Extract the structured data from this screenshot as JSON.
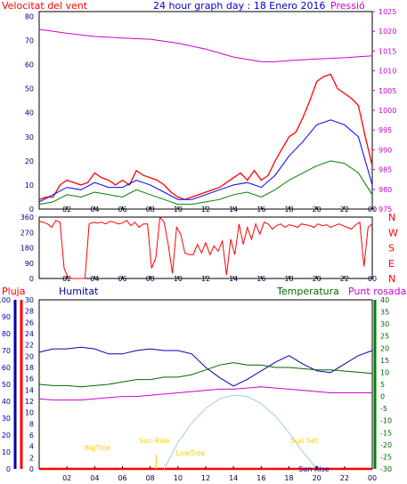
{
  "header": {
    "wind_label": "Velocitat del vent",
    "graph_title": "24 hour graph day : 18 Enero 2016",
    "pressure_label": "Pressió"
  },
  "middle": {
    "rain_label": "Pluja",
    "humidity_label": "Humitat",
    "temperature_label": "Temperatura",
    "dewpoint_label": "Punt rosada"
  },
  "colors": {
    "wind_gust": "#ff0000",
    "wind_avg": "#0000ff",
    "wind_low": "#008000",
    "pressure": "#cc00cc",
    "direction": "#ff0000",
    "humidity": "#0000aa",
    "temperature": "#006600",
    "dewpoint": "#cc00cc",
    "rain": "#ff0000",
    "sun_arc": "#99ccee",
    "sun_labels": "#ffcc00"
  },
  "chart_data": [
    {
      "type": "line",
      "title": "24 hour graph day : 18 Enero 2016",
      "x_tick_labels": [
        "02",
        "04",
        "06",
        "08",
        "10",
        "12",
        "14",
        "16",
        "18",
        "20",
        "22",
        "00"
      ],
      "x_range_hours": [
        0,
        24
      ],
      "left_axis": {
        "label": "Velocitat del vent",
        "ticks": [
          "0",
          "10",
          "20",
          "30",
          "40",
          "50",
          "60",
          "70",
          "80"
        ],
        "ylim": [
          0,
          82
        ]
      },
      "right_axis": {
        "label": "Pressió",
        "ticks": [
          "975",
          "980",
          "985",
          "990",
          "995",
          "1000",
          "1005",
          "1010",
          "1015",
          "1020",
          "1025"
        ],
        "ylim": [
          975,
          1025
        ]
      },
      "series": [
        {
          "name": "Velocitat del vent",
          "axis": "left",
          "color": "#ff0000",
          "x": [
            0,
            0.5,
            1,
            1.5,
            2,
            2.5,
            3,
            3.5,
            4,
            4.5,
            5,
            5.5,
            6,
            6.5,
            7,
            7.5,
            8,
            8.5,
            9,
            9.5,
            10,
            10.5,
            11,
            11.5,
            12,
            12.5,
            13,
            13.5,
            14,
            14.5,
            15,
            15.5,
            16,
            16.5,
            17,
            17.5,
            18,
            18.5,
            19,
            19.5,
            20,
            20.5,
            21,
            21.5,
            22,
            22.5,
            23,
            23.5,
            24
          ],
          "y": [
            4,
            5,
            5,
            10,
            12,
            11,
            10,
            11,
            15,
            13,
            12,
            10,
            12,
            10,
            16,
            14,
            13,
            12,
            10,
            7,
            5,
            4,
            5,
            6,
            7,
            8,
            9,
            11,
            13,
            15,
            12,
            16,
            12,
            14,
            20,
            25,
            30,
            32,
            38,
            45,
            53,
            55,
            56,
            50,
            48,
            46,
            43,
            30,
            18
          ]
        },
        {
          "name": "",
          "axis": "left",
          "color": "#0000ff",
          "x": [
            0,
            1,
            2,
            3,
            4,
            5,
            6,
            7,
            8,
            9,
            10,
            11,
            12,
            13,
            14,
            15,
            16,
            17,
            18,
            19,
            20,
            21,
            22,
            23,
            24
          ],
          "y": [
            3,
            6,
            9,
            8,
            11,
            9,
            9,
            12,
            10,
            7,
            4,
            4,
            6,
            8,
            10,
            11,
            9,
            14,
            22,
            28,
            35,
            37,
            35,
            30,
            10
          ]
        },
        {
          "name": "",
          "axis": "left",
          "color": "#008000",
          "x": [
            0,
            1,
            2,
            3,
            4,
            5,
            6,
            7,
            8,
            9,
            10,
            11,
            12,
            13,
            14,
            15,
            16,
            17,
            18,
            19,
            20,
            21,
            22,
            23,
            24
          ],
          "y": [
            2,
            3,
            6,
            5,
            7,
            6,
            5,
            8,
            6,
            4,
            2,
            2,
            3,
            4,
            6,
            7,
            5,
            8,
            12,
            15,
            18,
            20,
            19,
            15,
            6
          ]
        },
        {
          "name": "Pressió",
          "axis": "right",
          "color": "#cc00cc",
          "x": [
            0,
            2,
            4,
            6,
            8,
            10,
            12,
            14,
            16,
            17,
            18,
            20,
            22,
            24
          ],
          "y": [
            1020.5,
            1019.5,
            1018.7,
            1018.3,
            1018.0,
            1017.0,
            1015.5,
            1013.5,
            1012.3,
            1012.3,
            1012.6,
            1013.0,
            1013.3,
            1013.8
          ]
        }
      ]
    },
    {
      "type": "line",
      "title": "",
      "x_tick_labels": [
        "02",
        "04",
        "06",
        "08",
        "10",
        "12",
        "14",
        "16",
        "18",
        "20",
        "22",
        "00"
      ],
      "x_range_hours": [
        0,
        24
      ],
      "y_ticks": [
        "0",
        "90",
        "180",
        "270",
        "360"
      ],
      "compass_labels": [
        "N",
        "W",
        "S",
        "E",
        "N"
      ],
      "ylim": [
        0,
        360
      ],
      "series": [
        {
          "name": "",
          "color": "#ff0000",
          "x": [
            0,
            0.3,
            0.6,
            0.9,
            1.2,
            1.5,
            1.8,
            2.1,
            2.4,
            2.7,
            3.0,
            3.3,
            3.6,
            3.9,
            4.2,
            4.5,
            4.8,
            5.1,
            5.4,
            5.7,
            6.0,
            6.3,
            6.6,
            6.9,
            7.2,
            7.5,
            7.8,
            8.1,
            8.4,
            8.7,
            9.0,
            9.3,
            9.6,
            9.9,
            10.2,
            10.5,
            10.8,
            11.1,
            11.4,
            11.7,
            12.0,
            12.3,
            12.6,
            12.9,
            13.2,
            13.5,
            13.8,
            14.1,
            14.4,
            14.7,
            15.0,
            15.3,
            15.6,
            15.9,
            16.2,
            16.5,
            16.8,
            17.1,
            17.4,
            17.7,
            18.0,
            18.3,
            18.6,
            18.9,
            19.2,
            19.5,
            19.8,
            20.1,
            20.4,
            20.7,
            21.0,
            21.3,
            21.6,
            21.9,
            22.2,
            22.5,
            22.8,
            23.1,
            23.4,
            23.7,
            24.0
          ],
          "y": [
            335,
            330,
            320,
            300,
            340,
            330,
            60,
            0,
            0,
            0,
            0,
            0,
            320,
            330,
            325,
            330,
            320,
            335,
            330,
            320,
            325,
            340,
            310,
            330,
            300,
            320,
            320,
            60,
            120,
            360,
            330,
            200,
            30,
            300,
            260,
            150,
            140,
            140,
            200,
            150,
            210,
            140,
            190,
            160,
            220,
            20,
            230,
            140,
            320,
            200,
            300,
            230,
            320,
            260,
            330,
            320,
            290,
            310,
            320,
            300,
            315,
            310,
            300,
            320,
            315,
            310,
            300,
            320,
            310,
            315,
            300,
            310,
            320,
            310,
            300,
            290,
            315,
            330,
            70,
            300,
            320
          ]
        }
      ]
    },
    {
      "type": "line",
      "title": "",
      "x_tick_labels": [
        "02",
        "04",
        "06",
        "08",
        "10",
        "12",
        "14",
        "16",
        "18",
        "20",
        "22",
        "00"
      ],
      "x_range_hours": [
        0,
        24
      ],
      "humidity_axis": {
        "label": "Humitat",
        "ticks": [
          "0",
          "10",
          "20",
          "30",
          "40",
          "50",
          "60",
          "70",
          "80",
          "90",
          "100"
        ],
        "ylim": [
          0,
          100
        ]
      },
      "rain_axis": {
        "label": "Pluja",
        "ticks": [
          "0",
          "2",
          "4",
          "6",
          "8",
          "10",
          "12",
          "14",
          "16",
          "18",
          "20",
          "22",
          "24",
          "26",
          "28",
          "30"
        ],
        "ylim": [
          0,
          30
        ]
      },
      "temperature_axis": {
        "label": "Temperatura",
        "ticks": [
          "-30",
          "-25",
          "-20",
          "-15",
          "-10",
          "-5",
          "0",
          "5",
          "10",
          "15",
          "20",
          "25",
          "30",
          "35",
          "40"
        ],
        "ylim": [
          -30,
          40
        ]
      },
      "annotations": [
        {
          "text": "BigTide",
          "hour": 4.2
        },
        {
          "text": "Sun Rise",
          "hour": 8.3
        },
        {
          "text": "LowTide",
          "hour": 10.9
        },
        {
          "text": "Sun Set",
          "hour": 19.1
        },
        {
          "text": "Sun Rise",
          "hour": 19.8
        }
      ],
      "series": [
        {
          "name": "Humitat",
          "axis": "humidity",
          "color": "#0000aa",
          "x": [
            0,
            1,
            2,
            3,
            4,
            5,
            6,
            7,
            8,
            9,
            10,
            11,
            12,
            13,
            14,
            15,
            16,
            17,
            18,
            19,
            20,
            21,
            22,
            23,
            24
          ],
          "y": [
            69,
            71,
            71,
            72,
            71,
            68,
            68,
            70,
            71,
            70,
            70,
            68,
            60,
            54,
            49,
            53,
            58,
            63,
            67,
            62,
            58,
            57,
            62,
            67,
            70
          ]
        },
        {
          "name": "Temperatura",
          "axis": "temperature",
          "color": "#006600",
          "x": [
            0,
            1,
            2,
            3,
            4,
            5,
            6,
            7,
            8,
            9,
            10,
            11,
            12,
            13,
            14,
            15,
            16,
            17,
            18,
            19,
            20,
            21,
            22,
            23,
            24
          ],
          "y": [
            5,
            4.5,
            4.5,
            4,
            4.5,
            5,
            6,
            7,
            7,
            8,
            8,
            9,
            11,
            13,
            14,
            13,
            13,
            12,
            12,
            11.5,
            11,
            11,
            10.5,
            10,
            9.5
          ]
        },
        {
          "name": "Punt rosada",
          "axis": "temperature",
          "color": "#cc00cc",
          "x": [
            0,
            1,
            2,
            3,
            4,
            5,
            6,
            7,
            8,
            9,
            10,
            11,
            12,
            13,
            14,
            15,
            16,
            17,
            18,
            19,
            20,
            21,
            22,
            23,
            24
          ],
          "y": [
            -1,
            -1.5,
            -1.5,
            -1.5,
            -1,
            -0.5,
            0,
            0,
            0.5,
            1,
            1.5,
            2,
            2.5,
            3,
            3,
            3.5,
            4,
            3.5,
            3,
            2.5,
            2,
            1.5,
            1.5,
            1.5,
            1.5
          ]
        },
        {
          "name": "Pluja",
          "axis": "rain",
          "color": "#ff0000",
          "x": [
            0,
            24
          ],
          "y": [
            0,
            0
          ]
        },
        {
          "name": "",
          "axis": "temperature",
          "color": "#99ccee",
          "x": [
            9,
            10,
            11,
            12,
            13,
            14,
            15,
            16,
            17,
            18,
            19,
            20
          ],
          "y": [
            -30,
            -19,
            -11,
            -5,
            -1,
            0.5,
            0,
            -3,
            -8,
            -15,
            -23,
            -30
          ]
        }
      ]
    }
  ]
}
